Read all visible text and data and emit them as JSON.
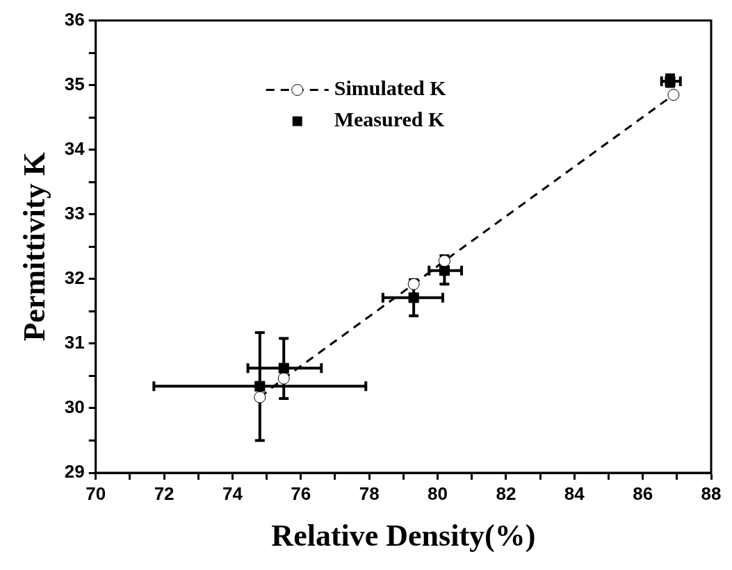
{
  "chart_data": {
    "type": "scatter",
    "xlabel": "Relative Density(%)",
    "ylabel": "Permittivity K",
    "xlim": [
      70,
      88
    ],
    "xticks": [
      70,
      {
        "value": 71,
        "label": null
      },
      72,
      {
        "value": 73,
        "label": null
      },
      74,
      {
        "value": 75,
        "label": null
      },
      76,
      {
        "value": 77,
        "label": null
      },
      78,
      {
        "value": 79,
        "label": null
      },
      80,
      {
        "value": 81,
        "label": null
      },
      82,
      {
        "value": 83,
        "label": null
      },
      84,
      {
        "value": 85,
        "label": null
      },
      86,
      {
        "value": 87,
        "label": null
      },
      88
    ],
    "ylim": [
      29,
      36
    ],
    "yticks": [
      29,
      {
        "value": 29.5,
        "label": null
      },
      30,
      {
        "value": 30.5,
        "label": null
      },
      31,
      {
        "value": 31.5,
        "label": null
      },
      32,
      {
        "value": 32.5,
        "label": null
      },
      33,
      {
        "value": 33.5,
        "label": null
      },
      34,
      {
        "value": 34.5,
        "label": null
      },
      35,
      {
        "value": 35.5,
        "label": null
      },
      36
    ],
    "grid": false,
    "legend": "top left",
    "series": [
      {
        "name": "Simulated K",
        "type": "line",
        "marker": "circle",
        "line_style": "dashed",
        "color": "#000000",
        "x": [
          74.8,
          75.5,
          79.3,
          80.2,
          86.9
        ],
        "values": [
          30.17,
          30.46,
          31.92,
          32.28,
          34.85
        ]
      },
      {
        "name": "Measured K",
        "type": "scatter",
        "marker": "square",
        "color": "#000000",
        "x": [
          74.8,
          75.5,
          79.3,
          80.2,
          86.8
        ],
        "values": [
          30.34,
          30.62,
          31.71,
          32.13,
          35.06
        ],
        "errors": [
          [
            29.5,
            31.17
          ],
          [
            30.15,
            31.08
          ],
          [
            31.43,
            31.99
          ],
          [
            31.92,
            32.36
          ],
          [
            34.98,
            35.16
          ]
        ],
        "xerrors": [
          [
            71.7,
            77.9
          ],
          [
            74.45,
            76.6
          ],
          [
            78.4,
            80.15
          ],
          [
            79.75,
            80.7
          ],
          [
            86.55,
            87.1
          ]
        ]
      }
    ]
  }
}
